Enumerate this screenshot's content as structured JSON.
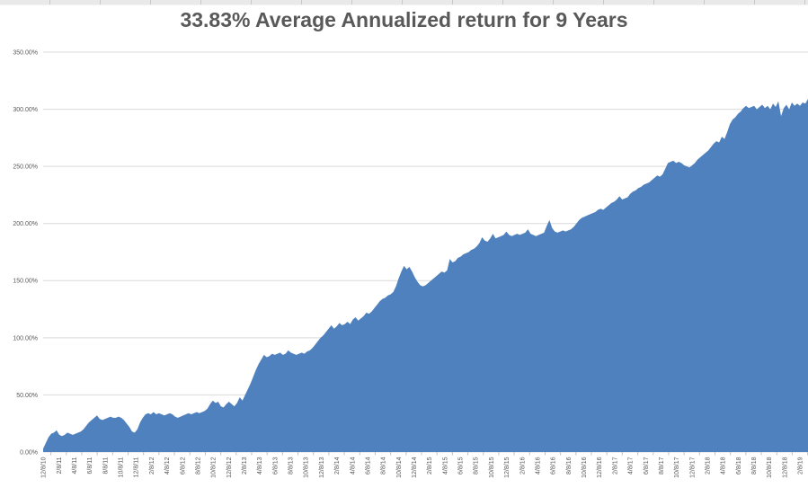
{
  "chart_data": {
    "type": "area",
    "title": "33.83% Average Annualized return for 9 Years",
    "grid": "horizontal",
    "legend": "none",
    "y_axis": {
      "min": 0,
      "max": 350,
      "step": 50,
      "unit": "percent",
      "tick_labels": [
        "350.00%",
        "300.00%",
        "250.00%",
        "200.00%",
        "150.00%",
        "100.00%",
        "50.00%",
        "0.00%"
      ]
    },
    "x_axis": {
      "start": "12/8/10",
      "end": "2/8/19",
      "label_interval": "2 months",
      "tick_labels": [
        "12/8/10",
        "2/8/11",
        "4/8/11",
        "6/8/11",
        "8/8/11",
        "10/8/11",
        "12/8/11",
        "2/8/12",
        "4/8/12",
        "6/8/12",
        "8/8/12",
        "10/8/12",
        "12/8/12",
        "2/8/13",
        "4/8/13",
        "6/8/13",
        "8/8/13",
        "10/8/13",
        "12/8/13",
        "2/8/14",
        "4/8/14",
        "6/8/14",
        "8/8/14",
        "10/8/14",
        "12/8/14",
        "2/8/15",
        "4/8/15",
        "6/8/15",
        "8/8/15",
        "10/8/15",
        "12/8/15",
        "2/8/16",
        "4/8/16",
        "6/8/16",
        "8/8/16",
        "10/8/16",
        "12/8/16",
        "2/8/17",
        "4/8/17",
        "6/8/17",
        "8/8/17",
        "10/8/17",
        "12/8/17",
        "2/8/18",
        "4/8/18",
        "6/8/18",
        "8/8/18",
        "10/8/18",
        "12/8/18",
        "2/8/19"
      ]
    },
    "series": [
      {
        "color": "#4e81bd",
        "sampling": "uniform across x-axis, cumulative return in percent",
        "values": [
          3,
          8,
          13,
          16,
          17,
          19,
          15,
          14,
          15,
          17,
          16,
          15,
          16,
          17,
          18,
          20,
          23,
          26,
          28,
          30,
          32,
          29,
          28,
          29,
          30,
          31,
          30,
          30,
          31,
          30,
          28,
          25,
          22,
          18,
          17,
          20,
          26,
          30,
          33,
          34,
          33,
          35,
          33,
          34,
          33,
          32,
          33,
          34,
          33,
          31,
          30,
          31,
          32,
          33,
          34,
          33,
          34,
          35,
          34,
          35,
          36,
          38,
          42,
          45,
          43,
          44,
          40,
          39,
          42,
          44,
          42,
          40,
          43,
          48,
          45,
          50,
          55,
          60,
          66,
          72,
          77,
          81,
          85,
          83,
          84,
          86,
          85,
          86,
          87,
          85,
          86,
          89,
          87,
          86,
          85,
          86,
          87,
          86,
          88,
          89,
          91,
          94,
          97,
          100,
          102,
          105,
          108,
          111,
          108,
          110,
          113,
          111,
          112,
          114,
          112,
          116,
          118,
          115,
          117,
          119,
          122,
          121,
          123,
          126,
          129,
          132,
          134,
          135,
          137,
          138,
          140,
          145,
          152,
          158,
          163,
          160,
          162,
          158,
          153,
          149,
          146,
          145,
          146,
          148,
          150,
          152,
          154,
          156,
          158,
          157,
          159,
          169,
          166,
          167,
          170,
          171,
          173,
          174,
          175,
          177,
          178,
          180,
          183,
          188,
          185,
          184,
          187,
          191,
          187,
          188,
          189,
          190,
          193,
          190,
          189,
          190,
          191,
          190,
          191,
          192,
          195,
          191,
          190,
          189,
          190,
          191,
          192,
          198,
          203,
          196,
          193,
          192,
          193,
          194,
          193,
          194,
          195,
          197,
          200,
          203,
          205,
          206,
          207,
          208,
          209,
          210,
          212,
          213,
          212,
          214,
          216,
          218,
          219,
          221,
          224,
          221,
          222,
          223,
          226,
          228,
          229,
          231,
          232,
          234,
          235,
          236,
          238,
          240,
          242,
          241,
          243,
          248,
          253,
          254,
          255,
          253,
          254,
          253,
          251,
          250,
          249,
          251,
          253,
          256,
          258,
          260,
          262,
          264,
          267,
          270,
          272,
          271,
          276,
          274,
          280,
          287,
          291,
          293,
          296,
          298,
          301,
          303,
          301,
          302,
          303,
          300,
          302,
          304,
          301,
          303,
          300,
          305,
          302,
          307,
          294,
          301,
          304,
          300,
          306,
          303,
          305,
          303,
          306,
          305,
          309
        ]
      }
    ]
  },
  "colors": {
    "area": "#4e81bd",
    "gridline": "#d9d9d9",
    "tick_mark": "#bfbfbf",
    "axis_text": "#595959",
    "title_text": "#595959",
    "header_strip": "#e9e9e9"
  }
}
